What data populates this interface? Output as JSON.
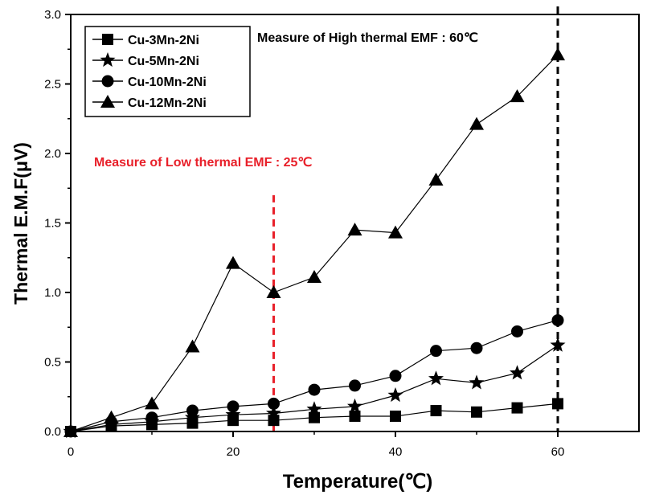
{
  "chart_data": {
    "type": "line",
    "xlabel": "Temperature(℃)",
    "ylabel": "Thermal E.M.F(μV)",
    "xlim": [
      0,
      70
    ],
    "ylim": [
      0,
      3.0
    ],
    "x_ticks": [
      0,
      20,
      40,
      60
    ],
    "y_ticks": [
      0.0,
      0.5,
      1.0,
      1.5,
      2.0,
      2.5,
      3.0
    ],
    "x_tick_labels": [
      "0",
      "20",
      "40",
      "60"
    ],
    "y_tick_labels": [
      "0.0",
      "0.5",
      "1.0",
      "1.5",
      "2.0",
      "2.5",
      "3.0"
    ],
    "grid": false,
    "legend_position": "top-left",
    "x": [
      0,
      5,
      10,
      15,
      20,
      25,
      30,
      35,
      40,
      45,
      50,
      55,
      60
    ],
    "series": [
      {
        "name": "Cu-3Mn-2Ni",
        "marker": "square",
        "values": [
          0.0,
          0.04,
          0.05,
          0.06,
          0.08,
          0.08,
          0.1,
          0.11,
          0.11,
          0.15,
          0.14,
          0.17,
          0.2
        ]
      },
      {
        "name": "Cu-5Mn-2Ni",
        "marker": "star",
        "values": [
          0.0,
          0.05,
          0.07,
          0.1,
          0.12,
          0.13,
          0.16,
          0.18,
          0.26,
          0.38,
          0.35,
          0.42,
          0.62
        ]
      },
      {
        "name": "Cu-10Mn-2Ni",
        "marker": "circle",
        "values": [
          0.0,
          0.07,
          0.1,
          0.15,
          0.18,
          0.2,
          0.3,
          0.33,
          0.4,
          0.58,
          0.6,
          0.72,
          0.8
        ]
      },
      {
        "name": "Cu-12Mn-2Ni",
        "marker": "triangle",
        "values": [
          0.0,
          0.1,
          0.2,
          0.61,
          1.21,
          1.0,
          1.11,
          1.45,
          1.43,
          1.81,
          2.21,
          2.41,
          2.71
        ]
      }
    ],
    "annotations": [
      {
        "text": "Measure of Low thermal EMF : 25℃",
        "x": 25,
        "color": "#e8202a",
        "line_style": "dashed",
        "line_top": 1.7
      },
      {
        "text": "Measure of High thermal EMF : 60℃",
        "x": 60,
        "color": "#000000",
        "line_style": "dashed",
        "line_top": 3.0
      }
    ]
  }
}
